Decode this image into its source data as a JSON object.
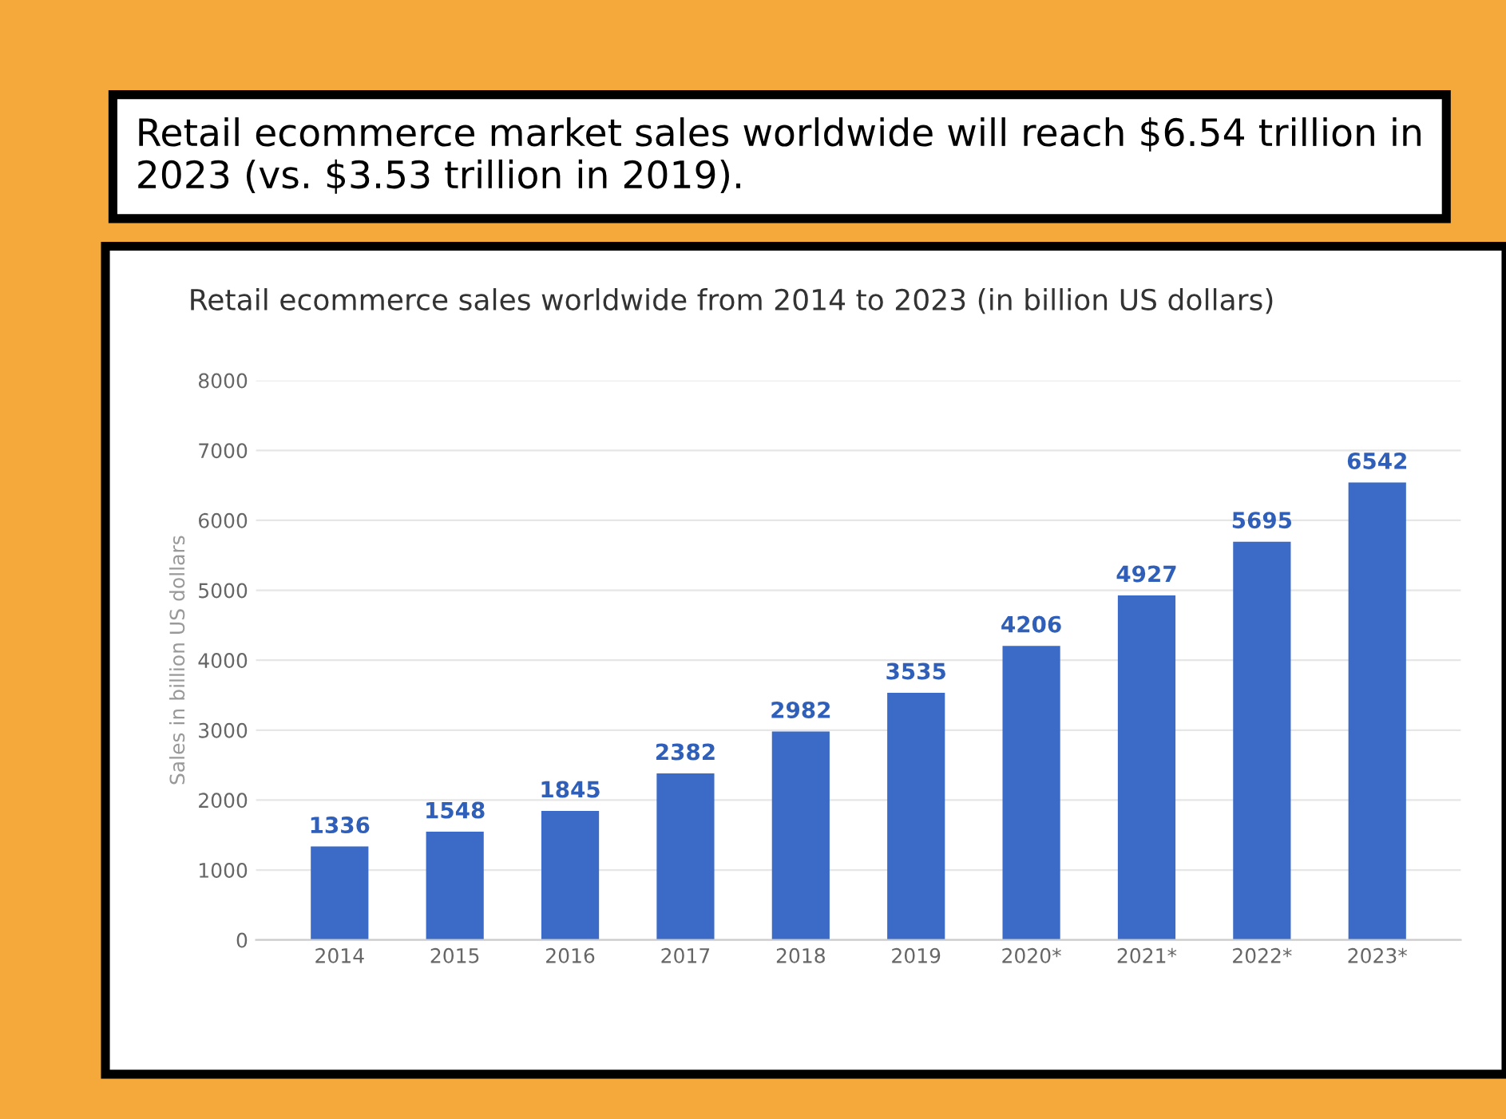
{
  "chart_data": {
    "type": "bar",
    "title": "Retail ecommerce market sales worldwide will reach $6.54 trillion in 2023 (vs. $3.53 trillion in 2019).",
    "subtitle": "Retail ecommerce sales worldwide from 2014 to 2023 (in billion US dollars)",
    "ylabel": "Sales in billion US dollars",
    "categories": [
      "2014",
      "2015",
      "2016",
      "2017",
      "2018",
      "2019",
      "2020*",
      "2021*",
      "2022*",
      "2023*"
    ],
    "values": [
      1336,
      1548,
      1845,
      2382,
      2982,
      3535,
      4206,
      4927,
      5695,
      6542
    ],
    "color": "#3b6bc6",
    "data_labels": true,
    "ylim": [
      0,
      8000
    ],
    "yticks": [
      0,
      1000,
      2000,
      3000,
      4000,
      5000,
      6000,
      7000,
      8000
    ],
    "grid": "y"
  }
}
